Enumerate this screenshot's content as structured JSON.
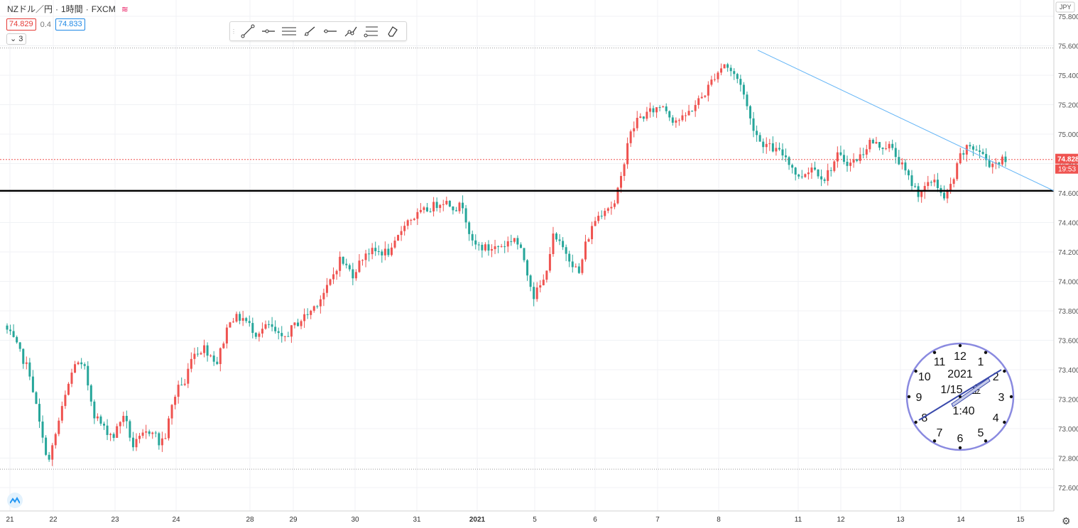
{
  "header": {
    "symbol": "NZドル／円",
    "interval": "1時間",
    "source": "FXCM",
    "separator": "·",
    "bid": "74.829",
    "spread": "0.4",
    "ask": "74.833",
    "collapse_label": "3"
  },
  "toolbar": {
    "tools": [
      "trend-line-icon",
      "horizontal-ray-icon",
      "parallel-channel-icon",
      "arrow-line-icon",
      "horizontal-line-icon",
      "path-icon",
      "fib-icon",
      "eraser-icon"
    ]
  },
  "colors": {
    "up": "#ef5350",
    "down": "#26a69a",
    "trendline": "#64b5f6",
    "support": "#000000",
    "price_line": "#ef5350",
    "clock_ring": "#8a8ae0",
    "clock_hand": "#3949ab"
  },
  "chart_data": {
    "type": "candlestick",
    "currency": "JPY",
    "ylim": [
      72.48,
      75.72
    ],
    "y_ticks": [
      "75.800",
      "75.600",
      "75.400",
      "75.200",
      "75.000",
      "74.800",
      "74.600",
      "74.400",
      "74.200",
      "74.000",
      "73.800",
      "73.600",
      "73.400",
      "73.200",
      "73.000",
      "72.800",
      "72.600"
    ],
    "x_ticks": [
      "21",
      "22",
      "23",
      "24",
      "28",
      "29",
      "30",
      "31",
      "2021",
      "5",
      "6",
      "7",
      "8",
      "11",
      "12",
      "13",
      "14",
      "15"
    ],
    "last_price": "74.828",
    "countdown": "19:53",
    "high_level": 75.585,
    "low_level": 72.725,
    "support_level": 74.615,
    "trendline": {
      "from": {
        "bar": 223,
        "price": 75.57
      },
      "to": {
        "bar": 322,
        "price": 74.615
      }
    },
    "candles": {
      "count": 322,
      "anchors": [
        [
          0,
          73.7
        ],
        [
          3,
          73.6
        ],
        [
          8,
          73.38
        ],
        [
          12,
          72.92
        ],
        [
          14,
          72.78
        ],
        [
          17,
          73.05
        ],
        [
          20,
          73.3
        ],
        [
          22,
          73.45
        ],
        [
          25,
          73.4
        ],
        [
          28,
          73.1
        ],
        [
          31,
          73.0
        ],
        [
          34,
          72.95
        ],
        [
          37,
          73.1
        ],
        [
          40,
          72.88
        ],
        [
          43,
          72.95
        ],
        [
          46,
          73.0
        ],
        [
          48,
          72.9
        ],
        [
          50,
          72.95
        ],
        [
          52,
          73.15
        ],
        [
          54,
          73.3
        ],
        [
          56,
          73.3
        ],
        [
          58,
          73.5
        ],
        [
          62,
          73.55
        ],
        [
          66,
          73.45
        ],
        [
          70,
          73.75
        ],
        [
          74,
          73.75
        ],
        [
          78,
          73.65
        ],
        [
          82,
          73.7
        ],
        [
          86,
          73.6
        ],
        [
          90,
          73.7
        ],
        [
          95,
          73.8
        ],
        [
          100,
          73.95
        ],
        [
          104,
          74.15
        ],
        [
          108,
          74.05
        ],
        [
          112,
          74.2
        ],
        [
          116,
          74.2
        ],
        [
          120,
          74.2
        ],
        [
          124,
          74.4
        ],
        [
          128,
          74.45
        ],
        [
          132,
          74.5
        ],
        [
          136,
          74.55
        ],
        [
          140,
          74.5
        ],
        [
          142,
          74.52
        ],
        [
          145,
          74.25
        ],
        [
          150,
          74.22
        ],
        [
          155,
          74.25
        ],
        [
          158,
          74.3
        ],
        [
          161,
          74.15
        ],
        [
          164,
          73.9
        ],
        [
          167,
          74.0
        ],
        [
          170,
          74.3
        ],
        [
          174,
          74.2
        ],
        [
          178,
          74.05
        ],
        [
          180,
          74.25
        ],
        [
          183,
          74.42
        ],
        [
          186,
          74.5
        ],
        [
          189,
          74.52
        ],
        [
          191,
          74.7
        ],
        [
          193,
          74.95
        ],
        [
          196,
          75.1
        ],
        [
          200,
          75.15
        ],
        [
          204,
          75.2
        ],
        [
          207,
          75.1
        ],
        [
          210,
          75.1
        ],
        [
          214,
          75.2
        ],
        [
          217,
          75.28
        ],
        [
          220,
          75.4
        ],
        [
          223,
          75.48
        ],
        [
          226,
          75.4
        ],
        [
          228,
          75.35
        ],
        [
          231,
          75.1
        ],
        [
          234,
          74.95
        ],
        [
          238,
          74.9
        ],
        [
          242,
          74.85
        ],
        [
          246,
          74.7
        ],
        [
          250,
          74.78
        ],
        [
          254,
          74.7
        ],
        [
          258,
          74.85
        ],
        [
          262,
          74.8
        ],
        [
          265,
          74.85
        ],
        [
          268,
          74.95
        ],
        [
          271,
          74.92
        ],
        [
          274,
          74.92
        ],
        [
          277,
          74.82
        ],
        [
          280,
          74.7
        ],
        [
          283,
          74.6
        ],
        [
          286,
          74.65
        ],
        [
          288,
          74.7
        ],
        [
          291,
          74.55
        ],
        [
          294,
          74.7
        ],
        [
          296,
          74.85
        ],
        [
          299,
          74.92
        ],
        [
          302,
          74.88
        ],
        [
          305,
          74.8
        ],
        [
          309,
          74.82
        ]
      ],
      "visible_count": 310
    }
  },
  "clock": {
    "numbers": [
      "12",
      "1",
      "2",
      "3",
      "4",
      "5",
      "6",
      "7",
      "8",
      "9",
      "10",
      "11"
    ],
    "year": "2021",
    "date": "1/15",
    "weekday": "金",
    "time": "1:40"
  }
}
